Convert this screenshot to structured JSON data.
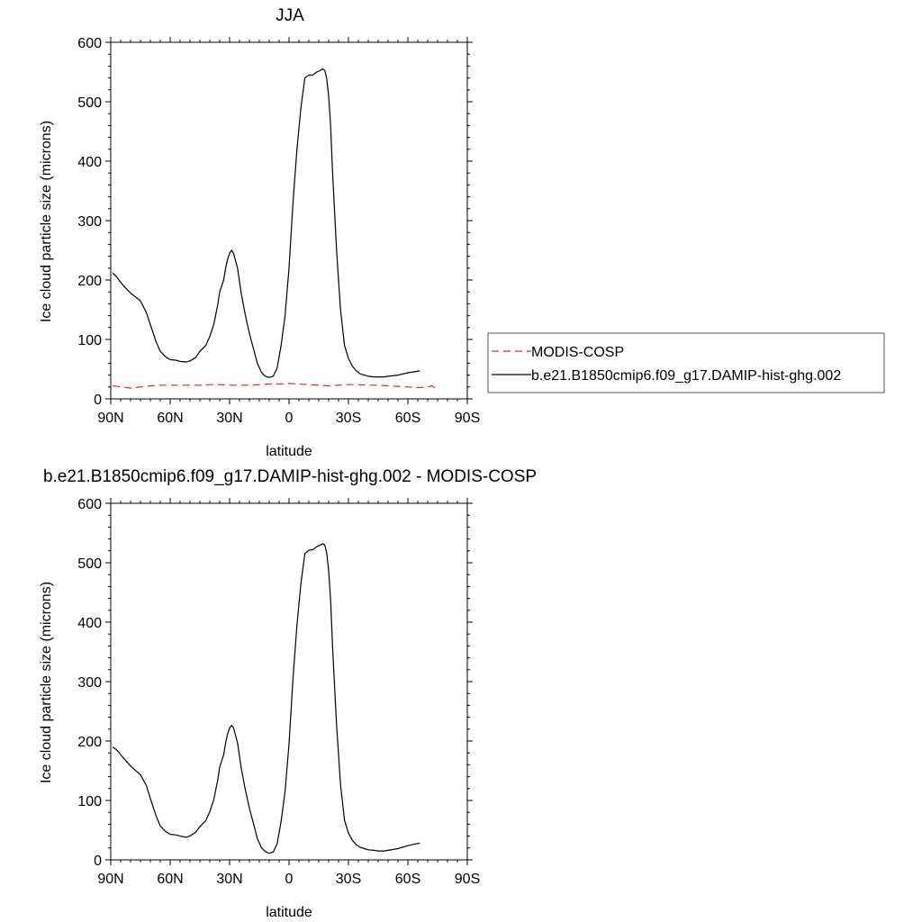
{
  "chart_data": [
    {
      "type": "line",
      "title": "JJA",
      "xlabel": "latitude",
      "ylabel": "Ice cloud particle size (microns)",
      "xlim": [
        90,
        -90
      ],
      "ylim": [
        0,
        600
      ],
      "x_ticks": [
        90,
        60,
        30,
        0,
        -30,
        -60,
        -90
      ],
      "x_tick_labels": [
        "90N",
        "60N",
        "30N",
        "0",
        "30S",
        "60S",
        "90S"
      ],
      "y_ticks": [
        0,
        100,
        200,
        300,
        400,
        500,
        600
      ],
      "y_tick_labels": [
        "0",
        "100",
        "200",
        "300",
        "400",
        "500",
        "600"
      ],
      "grid": false,
      "legend": "right",
      "series": [
        {
          "name": "MODIS-COSP",
          "color": "#e8202a",
          "dash": "dashed",
          "x": [
            89,
            84,
            80,
            75,
            70,
            65,
            60,
            55,
            50,
            45,
            40,
            35,
            30,
            25,
            20,
            15,
            10,
            5,
            0,
            -5,
            -10,
            -15,
            -20,
            -25,
            -30,
            -35,
            -40,
            -45,
            -50,
            -55,
            -60,
            -65,
            -70,
            -72,
            -74
          ],
          "y": [
            22,
            20,
            18,
            20,
            22,
            23,
            23,
            23,
            23,
            23,
            24,
            24,
            23,
            23,
            23,
            24,
            25,
            25,
            26,
            25,
            24,
            23,
            22,
            23,
            24,
            24,
            23,
            23,
            22,
            21,
            20,
            19,
            20,
            22,
            18
          ]
        },
        {
          "name": "b.e21.B1850cmip6.f09_g17.DAMIP-hist-ghg.002",
          "color": "#000000",
          "dash": "solid",
          "x": [
            89,
            87,
            84,
            80,
            75,
            72,
            70,
            67,
            65,
            62,
            60,
            57,
            55,
            52,
            50,
            47,
            45,
            42,
            40,
            38,
            36,
            35,
            33,
            32,
            31,
            30,
            29,
            28,
            26,
            24,
            22,
            20,
            18,
            16,
            14,
            12,
            10,
            8,
            6,
            4,
            2,
            0,
            -2,
            -4,
            -6,
            -8,
            -10,
            -12,
            -14,
            -16,
            -17,
            -18,
            -19,
            -20,
            -21,
            -22,
            -24,
            -26,
            -28,
            -30,
            -32,
            -34,
            -36,
            -38,
            -40,
            -43,
            -45,
            -48,
            -50,
            -55,
            -60,
            -64,
            -66
          ],
          "y": [
            212,
            205,
            192,
            178,
            165,
            145,
            125,
            95,
            80,
            70,
            66,
            65,
            63,
            62,
            64,
            70,
            80,
            90,
            105,
            125,
            158,
            180,
            200,
            220,
            235,
            245,
            250,
            245,
            220,
            175,
            140,
            110,
            85,
            60,
            45,
            38,
            36,
            38,
            52,
            90,
            140,
            220,
            330,
            420,
            490,
            540,
            545,
            545,
            550,
            553,
            555,
            553,
            540,
            510,
            460,
            380,
            250,
            150,
            90,
            68,
            55,
            47,
            42,
            40,
            38,
            37,
            37,
            37,
            38,
            40,
            44,
            46,
            47
          ]
        }
      ]
    },
    {
      "type": "line",
      "title": "b.e21.B1850cmip6.f09_g17.DAMIP-hist-ghg.002 - MODIS-COSP",
      "xlabel": "latitude",
      "ylabel": "Ice cloud particle size (microns)",
      "xlim": [
        90,
        -90
      ],
      "ylim": [
        0,
        600
      ],
      "x_ticks": [
        90,
        60,
        30,
        0,
        -30,
        -60,
        -90
      ],
      "x_tick_labels": [
        "90N",
        "60N",
        "30N",
        "0",
        "30S",
        "60S",
        "90S"
      ],
      "y_ticks": [
        0,
        100,
        200,
        300,
        400,
        500,
        600
      ],
      "y_tick_labels": [
        "0",
        "100",
        "200",
        "300",
        "400",
        "500",
        "600"
      ],
      "grid": false,
      "legend": "none",
      "series": [
        {
          "color": "#000000",
          "dash": "solid",
          "x": [
            89,
            87,
            84,
            80,
            75,
            72,
            70,
            67,
            65,
            62,
            60,
            57,
            55,
            52,
            50,
            47,
            45,
            42,
            40,
            38,
            36,
            35,
            33,
            32,
            31,
            30,
            29,
            28,
            26,
            24,
            22,
            20,
            18,
            16,
            14,
            12,
            10,
            8,
            6,
            4,
            2,
            0,
            -2,
            -4,
            -6,
            -8,
            -10,
            -12,
            -14,
            -16,
            -17,
            -18,
            -19,
            -20,
            -21,
            -22,
            -24,
            -26,
            -28,
            -30,
            -32,
            -34,
            -36,
            -38,
            -40,
            -43,
            -45,
            -48,
            -50,
            -55,
            -60,
            -64,
            -66
          ],
          "y": [
            190,
            185,
            173,
            158,
            143,
            125,
            103,
            73,
            57,
            47,
            43,
            42,
            40,
            38,
            40,
            47,
            56,
            66,
            81,
            101,
            134,
            156,
            177,
            197,
            212,
            222,
            226,
            222,
            197,
            152,
            117,
            87,
            62,
            36,
            21,
            14,
            11,
            13,
            27,
            65,
            115,
            195,
            305,
            395,
            465,
            515,
            521,
            522,
            527,
            530,
            532,
            530,
            517,
            487,
            437,
            357,
            227,
            127,
            67,
            45,
            33,
            25,
            21,
            19,
            17,
            16,
            15,
            15,
            16,
            19,
            24,
            27,
            28
          ]
        }
      ]
    }
  ]
}
